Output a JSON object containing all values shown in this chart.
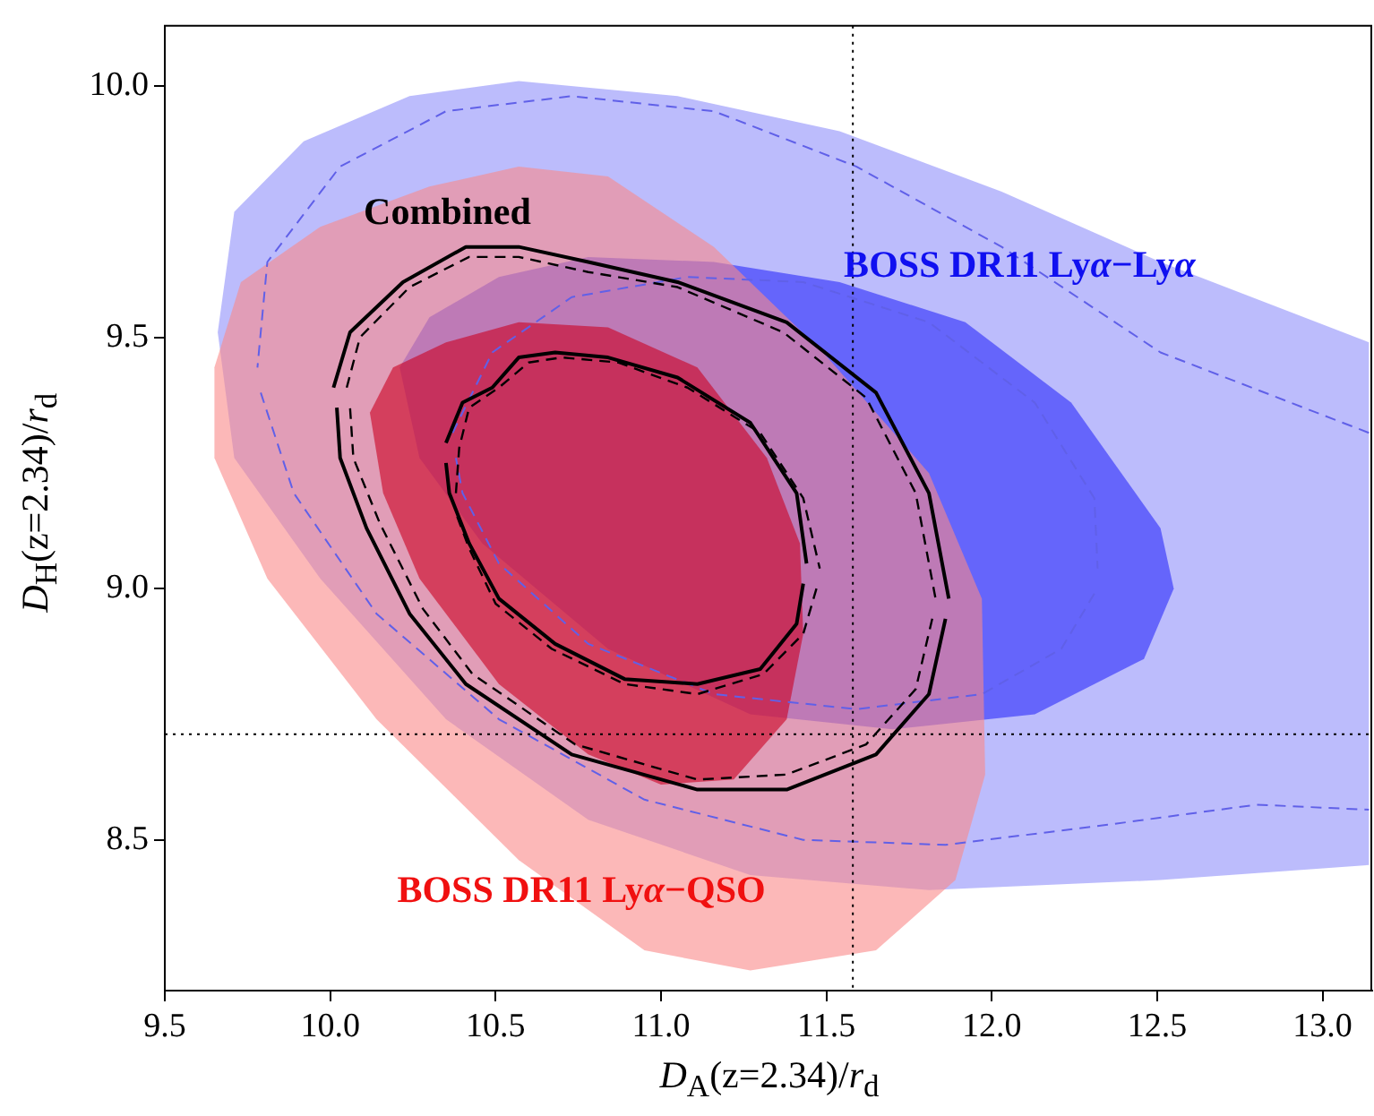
{
  "chart_data": {
    "type": "area",
    "xlabel": "D$_{A}$(z=2.34)/r$_{d}$",
    "ylabel": "D$_{H}$(z=2.34)/r$_{d}$",
    "xlim": [
      9.5,
      13.15
    ],
    "ylim": [
      8.2,
      10.12
    ],
    "xticks": [
      9.5,
      {
        "value": 10,
        "label": "10.0"
      },
      10.5,
      {
        "value": 11,
        "label": "11.0"
      },
      11.5,
      {
        "value": 12,
        "label": "12.0"
      },
      12.5,
      {
        "value": 13,
        "label": "13.0"
      }
    ],
    "yticks": [
      8.5,
      {
        "value": 9,
        "label": "9.0"
      },
      9.5,
      {
        "value": 10,
        "label": "10.0"
      }
    ],
    "grid": false,
    "ref_lines": [
      {
        "axis": "x",
        "value": 11.58,
        "line_style": "dotted",
        "color": "#000000"
      },
      {
        "axis": "y",
        "value": 8.71,
        "line_style": "dotted",
        "color": "#000000"
      }
    ],
    "series": [
      {
        "name": "BOSS DR11 Lyα−Lyα",
        "color": "#bcbcfc",
        "x": [
          9.71,
          9.92,
          10.24,
          10.57,
          11.05,
          11.54,
          12.03,
          12.51,
          13.14,
          13.14,
          12.51,
          11.81,
          11.27,
          10.78,
          10.35,
          9.97,
          9.71,
          9.66,
          9.71
        ],
        "values": [
          9.75,
          9.89,
          9.98,
          10.01,
          9.98,
          9.91,
          9.79,
          9.65,
          9.49,
          8.45,
          8.42,
          8.4,
          8.43,
          8.54,
          8.74,
          9.02,
          9.26,
          9.51,
          9.75
        ]
      },
      {
        "color": "#8080fc",
        "x": [
          10.21,
          10.3,
          10.51,
          10.78,
          11.16,
          11.54,
          11.92,
          12.24,
          12.51,
          12.55,
          12.46,
          12.13,
          11.7,
          11.27,
          10.84,
          10.46,
          10.27,
          10.21
        ],
        "values": [
          9.44,
          9.54,
          9.62,
          9.66,
          9.65,
          9.61,
          9.53,
          9.37,
          9.12,
          9.0,
          8.86,
          8.75,
          8.72,
          8.75,
          8.88,
          9.09,
          9.26,
          9.44
        ]
      },
      {
        "name": "BOSS DR11 Lyα−QSO",
        "color": "#fcb8b8",
        "x": [
          9.65,
          9.73,
          9.97,
          10.3,
          10.57,
          10.84,
          11.16,
          11.49,
          11.81,
          11.97,
          11.98,
          11.89,
          11.65,
          11.27,
          10.95,
          10.57,
          10.14,
          9.81,
          9.65,
          9.65
        ],
        "values": [
          9.44,
          9.61,
          9.72,
          9.8,
          9.84,
          9.82,
          9.68,
          9.47,
          9.23,
          8.98,
          8.63,
          8.42,
          8.28,
          8.24,
          8.28,
          8.46,
          8.74,
          9.02,
          9.26,
          9.44
        ]
      },
      {
        "color": "#e0607a",
        "x": [
          10.12,
          10.19,
          10.35,
          10.57,
          10.84,
          11.11,
          11.32,
          11.42,
          11.43,
          11.38,
          11.22,
          11.0,
          10.78,
          10.51,
          10.27,
          10.16,
          10.12
        ],
        "values": [
          9.35,
          9.44,
          9.49,
          9.53,
          9.52,
          9.44,
          9.26,
          9.09,
          8.91,
          8.74,
          8.62,
          8.61,
          8.67,
          8.81,
          9.02,
          9.19,
          9.35
        ]
      },
      {
        "type": "line",
        "color": "#6060e8",
        "line_style": "dashed",
        "x": [
          13.14,
          12.51,
          12.03,
          11.59,
          11.16,
          10.73,
          10.35,
          10.03,
          9.81,
          9.78
        ],
        "values": [
          9.31,
          9.47,
          9.68,
          9.84,
          9.95,
          9.98,
          9.95,
          9.84,
          9.65,
          9.44
        ]
      },
      {
        "type": "line",
        "color": "#6060e8",
        "line_style": "dashed",
        "x": [
          9.79,
          9.89,
          10.14,
          10.51,
          10.95,
          11.43,
          11.86,
          12.35,
          12.8,
          13.14
        ],
        "values": [
          9.39,
          9.19,
          8.95,
          8.74,
          8.58,
          8.5,
          8.49,
          8.53,
          8.57,
          8.56
        ]
      },
      {
        "type": "line",
        "color": "#6060e8",
        "line_style": "dashed",
        "x": [
          10.37,
          10.49,
          10.73,
          11.08,
          11.43,
          11.81,
          12.13,
          12.31,
          12.32
        ],
        "values": [
          9.31,
          9.47,
          9.58,
          9.62,
          9.61,
          9.53,
          9.37,
          9.18,
          9.04
        ]
      },
      {
        "type": "line",
        "color": "#6060e8",
        "line_style": "dashed",
        "x": [
          12.31,
          12.21,
          11.97,
          11.59,
          11.16,
          10.78,
          10.51,
          10.4,
          10.38
        ],
        "values": [
          8.99,
          8.88,
          8.79,
          8.76,
          8.79,
          8.89,
          9.05,
          9.19,
          9.26
        ]
      },
      {
        "type": "line",
        "name": "Combined",
        "color": "#000000",
        "line_style": "solid",
        "x": [
          10.01,
          10.06,
          10.22,
          10.41,
          10.57,
          10.78,
          11.05,
          11.38,
          11.65,
          11.81,
          11.87
        ],
        "values": [
          9.4,
          9.51,
          9.61,
          9.68,
          9.68,
          9.65,
          9.61,
          9.53,
          9.39,
          9.19,
          8.98
        ]
      },
      {
        "type": "line",
        "color": "#000000",
        "line_style": "solid",
        "x": [
          11.86,
          11.81,
          11.65,
          11.38,
          11.11,
          10.73,
          10.41,
          10.24,
          10.11,
          10.03,
          10.02
        ],
        "values": [
          8.94,
          8.79,
          8.67,
          8.6,
          8.6,
          8.67,
          8.81,
          8.95,
          9.12,
          9.26,
          9.36
        ]
      },
      {
        "type": "line",
        "color": "#000000",
        "line_style": "solid",
        "x": [
          10.35,
          10.4,
          10.49,
          10.57,
          10.68,
          10.84,
          11.05,
          11.27,
          11.41,
          11.44
        ],
        "values": [
          9.29,
          9.37,
          9.4,
          9.46,
          9.47,
          9.46,
          9.42,
          9.33,
          9.19,
          9.05
        ]
      },
      {
        "type": "line",
        "color": "#000000",
        "line_style": "solid",
        "x": [
          11.43,
          11.41,
          11.3,
          11.11,
          10.89,
          10.68,
          10.51,
          10.42,
          10.36,
          10.35
        ],
        "values": [
          9.01,
          8.93,
          8.84,
          8.81,
          8.82,
          8.89,
          8.98,
          9.09,
          9.19,
          9.25
        ]
      },
      {
        "type": "line",
        "color": "#000000",
        "line_style": "dashed",
        "x": [
          10.05,
          10.09,
          10.24,
          10.42,
          10.57,
          10.78,
          11.05,
          11.37,
          11.62,
          11.77,
          11.83
        ],
        "values": [
          9.4,
          9.5,
          9.6,
          9.66,
          9.66,
          9.63,
          9.6,
          9.51,
          9.38,
          9.19,
          8.98
        ]
      },
      {
        "type": "line",
        "color": "#000000",
        "line_style": "dashed",
        "x": [
          11.82,
          11.77,
          11.62,
          11.38,
          11.11,
          10.74,
          10.43,
          10.28,
          10.15,
          10.07,
          10.06
        ],
        "values": [
          8.94,
          8.8,
          8.69,
          8.63,
          8.62,
          8.69,
          8.83,
          8.96,
          9.13,
          9.26,
          9.36
        ]
      },
      {
        "type": "line",
        "color": "#000000",
        "line_style": "dashed",
        "x": [
          10.38,
          10.39,
          10.42,
          10.51,
          10.6,
          10.7,
          10.87,
          11.08,
          11.3,
          11.43,
          11.48
        ],
        "values": [
          9.19,
          9.28,
          9.36,
          9.4,
          9.45,
          9.46,
          9.45,
          9.4,
          9.31,
          9.18,
          9.04
        ]
      },
      {
        "type": "line",
        "color": "#000000",
        "line_style": "dashed",
        "x": [
          11.47,
          11.43,
          11.31,
          11.11,
          10.89,
          10.67,
          10.5,
          10.42,
          10.38
        ],
        "values": [
          9.0,
          8.91,
          8.83,
          8.79,
          8.81,
          8.88,
          8.97,
          9.08,
          9.15
        ]
      }
    ]
  }
}
